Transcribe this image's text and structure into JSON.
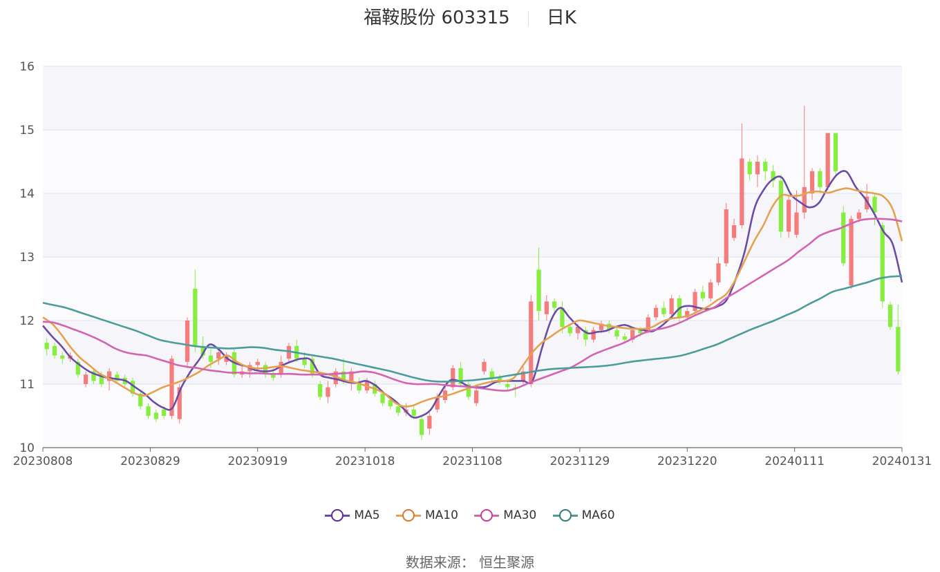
{
  "header": {
    "title": "福鞍股份 603315",
    "period": "日K"
  },
  "source": "数据来源： 恒生聚源",
  "chart_data": {
    "type": "candlestick",
    "ylim": [
      10,
      16
    ],
    "y_ticks": [
      "10",
      "11",
      "12",
      "13",
      "14",
      "15",
      "16"
    ],
    "x_tick_labels": [
      "20230808",
      "20230829",
      "20230919",
      "20231018",
      "20231108",
      "20231129",
      "20231220",
      "20240111",
      "20240131"
    ],
    "up_color": "#f47c7c",
    "down_color": "#86ee3e",
    "grid": true,
    "legend_position": "bottom",
    "series": [
      {
        "name": "MA5",
        "color": "#6a4ca6",
        "values": [
          11.92,
          11.75,
          11.6,
          11.42,
          11.3,
          11.2,
          11.14,
          11.1,
          11.08,
          11.05,
          10.95,
          10.85,
          10.72,
          10.63,
          10.62,
          10.95,
          11.2,
          11.4,
          11.62,
          11.55,
          11.4,
          11.32,
          11.28,
          11.22,
          11.2,
          11.22,
          11.3,
          11.36,
          11.4,
          11.38,
          11.15,
          11.1,
          11.07,
          11.03,
          11.02,
          11.05,
          10.98,
          10.85,
          10.75,
          10.62,
          10.48,
          10.5,
          10.6,
          10.85,
          11.05,
          11.05,
          10.97,
          10.95,
          10.96,
          11.03,
          11.05,
          11.05,
          11.05,
          11.05,
          11.55,
          12.0,
          12.2,
          12.05,
          11.9,
          11.8,
          11.82,
          11.84,
          11.9,
          11.93,
          11.88,
          11.85,
          11.83,
          11.92,
          12.05,
          12.2,
          12.23,
          12.2,
          12.18,
          12.22,
          12.32,
          12.65,
          13.1,
          13.75,
          14.05,
          14.22,
          14.25,
          13.98,
          13.86,
          13.78,
          13.85,
          14.1,
          14.3,
          14.34,
          14.1,
          13.92,
          13.68,
          13.4,
          13.2,
          12.6
        ]
      },
      {
        "name": "MA10",
        "color": "#e4a251",
        "values": [
          12.05,
          11.95,
          11.78,
          11.58,
          11.42,
          11.3,
          11.18,
          11.1,
          11.02,
          10.93,
          10.85,
          10.82,
          10.88,
          10.95,
          11.0,
          11.05,
          11.12,
          11.2,
          11.3,
          11.38,
          11.45,
          11.35,
          11.28,
          11.25,
          11.25,
          11.27,
          11.28,
          11.25,
          11.22,
          11.2,
          11.18,
          11.15,
          11.1,
          11.05,
          11.02,
          10.97,
          10.92,
          10.85,
          10.72,
          10.65,
          10.66,
          10.72,
          10.77,
          10.8,
          10.83,
          10.88,
          10.93,
          10.98,
          11.02,
          11.05,
          11.05,
          11.1,
          11.3,
          11.5,
          11.65,
          11.75,
          11.85,
          11.93,
          12.0,
          11.98,
          11.95,
          11.92,
          11.9,
          11.88,
          11.87,
          11.87,
          11.9,
          11.98,
          12.03,
          12.05,
          12.08,
          12.15,
          12.22,
          12.32,
          12.42,
          12.65,
          12.95,
          13.25,
          13.5,
          13.8,
          13.97,
          13.96,
          13.97,
          14.02,
          14.03,
          14.01,
          14.05,
          14.08,
          14.05,
          14.02,
          14.0,
          13.95,
          13.75,
          13.25
        ]
      },
      {
        "name": "MA30",
        "color": "#d264b0",
        "values": [
          11.98,
          11.97,
          11.92,
          11.86,
          11.8,
          11.73,
          11.65,
          11.56,
          11.5,
          11.47,
          11.45,
          11.4,
          11.35,
          11.3,
          11.27,
          11.25,
          11.22,
          11.2,
          11.18,
          11.18,
          11.17,
          11.17,
          11.16,
          11.16,
          11.16,
          11.15,
          11.15,
          11.15,
          11.16,
          11.17,
          11.18,
          11.2,
          11.18,
          11.13,
          11.07,
          11.02,
          11.0,
          11.0,
          11.0,
          10.98,
          10.97,
          10.96,
          10.94,
          10.92,
          10.9,
          10.9,
          10.95,
          11.02,
          11.08,
          11.14,
          11.2,
          11.26,
          11.35,
          11.45,
          11.52,
          11.58,
          11.64,
          11.72,
          11.8,
          11.85,
          11.88,
          11.93,
          12.0,
          12.08,
          12.15,
          12.22,
          12.35,
          12.45,
          12.55,
          12.65,
          12.75,
          12.85,
          12.95,
          13.08,
          13.2,
          13.33,
          13.4,
          13.45,
          13.52,
          13.58,
          13.6,
          13.6,
          13.59,
          13.56
        ]
      },
      {
        "name": "MA60",
        "color": "#4c9c9a",
        "values": [
          12.28,
          12.24,
          12.2,
          12.14,
          12.08,
          12.02,
          11.96,
          11.9,
          11.84,
          11.77,
          11.7,
          11.66,
          11.63,
          11.6,
          11.58,
          11.57,
          11.56,
          11.57,
          11.58,
          11.57,
          11.54,
          11.52,
          11.49,
          11.46,
          11.43,
          11.4,
          11.36,
          11.32,
          11.28,
          11.24,
          11.2,
          11.15,
          11.1,
          11.06,
          11.04,
          11.04,
          11.05,
          11.06,
          11.08,
          11.1,
          11.13,
          11.16,
          11.19,
          11.22,
          11.24,
          11.25,
          11.26,
          11.27,
          11.28,
          11.3,
          11.33,
          11.36,
          11.38,
          11.4,
          11.42,
          11.45,
          11.5,
          11.56,
          11.62,
          11.7,
          11.78,
          11.86,
          11.93,
          12.0,
          12.08,
          12.16,
          12.26,
          12.35,
          12.45,
          12.5,
          12.55,
          12.6,
          12.66,
          12.69,
          12.7
        ]
      }
    ],
    "candles": [
      [
        11.65,
        11.55,
        11.72,
        11.45
      ],
      [
        11.6,
        11.45,
        11.65,
        11.4
      ],
      [
        11.45,
        11.4,
        11.5,
        11.32
      ],
      [
        11.4,
        11.45,
        11.5,
        11.35
      ],
      [
        11.35,
        11.15,
        11.4,
        11.1
      ],
      [
        11.0,
        11.15,
        11.2,
        10.95
      ],
      [
        11.2,
        11.05,
        11.25,
        11.0
      ],
      [
        11.15,
        11.0,
        11.2,
        10.95
      ],
      [
        11.05,
        11.2,
        11.25,
        10.9
      ],
      [
        11.15,
        11.05,
        11.2,
        11.0
      ],
      [
        11.1,
        11.0,
        11.15,
        10.95
      ],
      [
        11.05,
        10.85,
        11.1,
        10.8
      ],
      [
        10.85,
        10.65,
        10.9,
        10.6
      ],
      [
        10.65,
        10.5,
        10.7,
        10.45
      ],
      [
        10.55,
        10.45,
        10.6,
        10.4
      ],
      [
        10.6,
        10.5,
        10.65,
        10.45
      ],
      [
        10.5,
        11.4,
        11.45,
        10.45
      ],
      [
        10.45,
        10.95,
        11.0,
        10.38
      ],
      [
        11.35,
        12.0,
        12.05,
        11.25
      ],
      [
        12.5,
        11.6,
        12.8,
        11.5
      ],
      [
        11.6,
        11.45,
        11.75,
        11.4
      ],
      [
        11.45,
        11.35,
        11.55,
        11.25
      ],
      [
        11.4,
        11.5,
        11.55,
        11.3
      ],
      [
        11.35,
        11.45,
        11.5,
        11.3
      ],
      [
        11.5,
        11.15,
        11.55,
        11.1
      ],
      [
        11.15,
        11.2,
        11.3,
        11.1
      ],
      [
        11.2,
        11.3,
        11.35,
        11.1
      ],
      [
        11.3,
        11.35,
        11.4,
        11.2
      ],
      [
        11.3,
        11.15,
        11.35,
        11.1
      ],
      [
        11.15,
        11.1,
        11.25,
        11.05
      ],
      [
        11.15,
        11.35,
        11.45,
        11.1
      ],
      [
        11.4,
        11.6,
        11.65,
        11.35
      ],
      [
        11.6,
        11.4,
        11.7,
        11.35
      ],
      [
        11.4,
        11.3,
        11.5,
        11.25
      ],
      [
        11.4,
        11.15,
        11.45,
        11.1
      ],
      [
        11.0,
        10.8,
        11.05,
        10.75
      ],
      [
        10.8,
        10.95,
        11.05,
        10.7
      ],
      [
        11.0,
        11.2,
        11.25,
        10.95
      ],
      [
        11.2,
        11.05,
        11.4,
        11.0
      ],
      [
        11.05,
        11.2,
        11.25,
        10.9
      ],
      [
        11.0,
        10.9,
        11.1,
        10.85
      ],
      [
        10.9,
        11.05,
        11.1,
        10.85
      ],
      [
        11.0,
        10.85,
        11.05,
        10.8
      ],
      [
        10.85,
        10.7,
        10.9,
        10.65
      ],
      [
        10.75,
        10.65,
        10.8,
        10.6
      ],
      [
        10.65,
        10.55,
        10.7,
        10.5
      ],
      [
        10.55,
        10.6,
        10.7,
        10.5
      ],
      [
        10.6,
        10.5,
        10.65,
        10.45
      ],
      [
        10.45,
        10.2,
        10.5,
        10.12
      ],
      [
        10.3,
        10.5,
        10.55,
        10.2
      ],
      [
        10.6,
        10.8,
        10.85,
        10.55
      ],
      [
        10.75,
        10.9,
        10.95,
        10.7
      ],
      [
        10.95,
        11.25,
        11.3,
        10.9
      ],
      [
        11.25,
        11.0,
        11.35,
        10.95
      ],
      [
        11.0,
        10.8,
        11.05,
        10.75
      ],
      [
        10.7,
        10.9,
        10.95,
        10.65
      ],
      [
        11.2,
        11.35,
        11.4,
        11.15
      ],
      [
        11.2,
        11.1,
        11.25,
        11.05
      ],
      [
        11.1,
        11.05,
        11.15,
        11.0
      ],
      [
        11.0,
        10.95,
        11.05,
        10.9
      ],
      [
        10.95,
        10.92,
        11.0,
        10.8
      ],
      [
        11.05,
        11.2,
        11.3,
        11.0
      ],
      [
        11.0,
        12.3,
        12.4,
        10.95
      ],
      [
        12.8,
        12.15,
        13.15,
        12.0
      ],
      [
        12.1,
        12.3,
        12.4,
        12.0
      ],
      [
        12.3,
        12.2,
        12.35,
        12.1
      ],
      [
        12.2,
        11.9,
        12.3,
        11.8
      ],
      [
        11.9,
        11.8,
        11.95,
        11.75
      ],
      [
        11.8,
        11.9,
        11.95,
        11.7
      ],
      [
        11.85,
        11.7,
        11.9,
        11.6
      ],
      [
        11.7,
        11.85,
        11.9,
        11.65
      ],
      [
        11.85,
        11.95,
        12.0,
        11.8
      ],
      [
        11.95,
        11.85,
        12.0,
        11.8
      ],
      [
        11.85,
        11.75,
        11.9,
        11.7
      ],
      [
        11.75,
        11.7,
        11.8,
        11.65
      ],
      [
        11.7,
        11.85,
        11.9,
        11.65
      ],
      [
        11.85,
        11.8,
        11.9,
        11.75
      ],
      [
        11.85,
        12.05,
        12.1,
        11.8
      ],
      [
        12.05,
        12.2,
        12.25,
        12.0
      ],
      [
        12.2,
        12.1,
        12.3,
        12.05
      ],
      [
        12.1,
        12.35,
        12.4,
        12.05
      ],
      [
        12.35,
        12.05,
        12.4,
        11.95
      ],
      [
        12.05,
        12.15,
        12.2,
        12.0
      ],
      [
        12.15,
        12.45,
        12.5,
        12.1
      ],
      [
        12.45,
        12.35,
        12.55,
        12.3
      ],
      [
        12.35,
        12.6,
        12.65,
        12.3
      ],
      [
        12.6,
        12.9,
        13.0,
        12.55
      ],
      [
        12.9,
        13.75,
        13.85,
        12.85
      ],
      [
        13.3,
        13.5,
        13.6,
        13.25
      ],
      [
        13.5,
        14.55,
        15.1,
        13.45
      ],
      [
        14.5,
        14.3,
        14.55,
        14.2
      ],
      [
        14.3,
        14.5,
        14.6,
        14.1
      ],
      [
        14.5,
        14.35,
        14.55,
        14.2
      ],
      [
        14.35,
        14.2,
        14.45,
        14.1
      ],
      [
        14.2,
        13.4,
        14.3,
        13.3
      ],
      [
        13.4,
        13.9,
        13.95,
        13.3
      ],
      [
        13.35,
        13.7,
        14.05,
        13.3
      ],
      [
        13.7,
        14.1,
        15.38,
        13.6
      ],
      [
        14.0,
        14.35,
        14.4,
        13.9
      ],
      [
        14.35,
        14.1,
        14.4,
        14.0
      ],
      [
        14.1,
        14.95,
        14.95,
        14.05
      ],
      [
        14.95,
        14.35,
        14.95,
        14.3
      ],
      [
        13.7,
        12.9,
        13.8,
        12.85
      ],
      [
        12.55,
        13.6,
        13.65,
        12.5
      ],
      [
        13.6,
        13.7,
        13.75,
        13.55
      ],
      [
        13.75,
        13.95,
        14.15,
        13.7
      ],
      [
        13.95,
        13.7,
        14.0,
        13.5
      ],
      [
        13.5,
        12.3,
        13.55,
        12.2
      ],
      [
        12.25,
        11.9,
        12.3,
        11.85
      ],
      [
        11.9,
        11.2,
        12.25,
        11.15
      ]
    ]
  }
}
